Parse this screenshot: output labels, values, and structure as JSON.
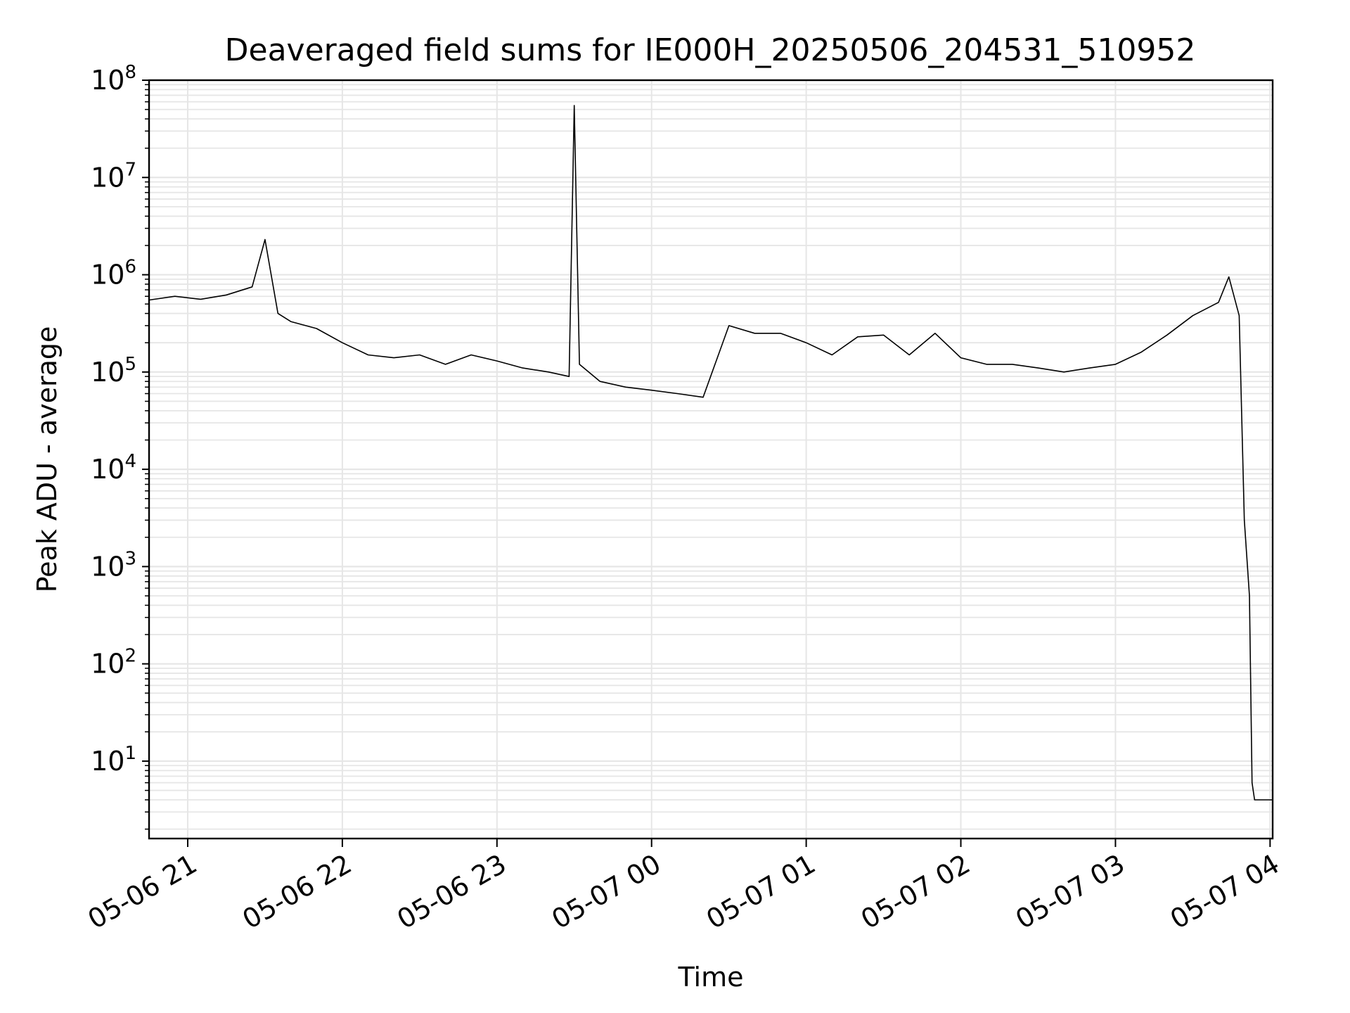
{
  "chart_data": {
    "type": "line",
    "title": "Deaveraged field sums for IE000H_20250506_204531_510952",
    "xlabel": "Time",
    "ylabel": "Peak ADU - average",
    "yscale": "log",
    "grid": true,
    "legend": "none",
    "line_color": "#000000",
    "grid_color": "#e6e6e6",
    "xlim": [
      "2025-05-06 20:45",
      "2025-05-07 04:01"
    ],
    "ylim": [
      1.6,
      100000000
    ],
    "x_ticks": [
      {
        "value": "2025-05-06 21:00",
        "label": "05-06 21"
      },
      {
        "value": "2025-05-06 22:00",
        "label": "05-06 22"
      },
      {
        "value": "2025-05-06 23:00",
        "label": "05-06 23"
      },
      {
        "value": "2025-05-07 00:00",
        "label": "05-07 00"
      },
      {
        "value": "2025-05-07 01:00",
        "label": "05-07 01"
      },
      {
        "value": "2025-05-07 02:00",
        "label": "05-07 02"
      },
      {
        "value": "2025-05-07 03:00",
        "label": "05-07 03"
      },
      {
        "value": "2025-05-07 04:00",
        "label": "05-07 04"
      }
    ],
    "y_ticks": [
      {
        "value": 10,
        "base": "10",
        "exp": "1"
      },
      {
        "value": 100,
        "base": "10",
        "exp": "2"
      },
      {
        "value": 1000,
        "base": "10",
        "exp": "3"
      },
      {
        "value": 10000,
        "base": "10",
        "exp": "4"
      },
      {
        "value": 100000,
        "base": "10",
        "exp": "5"
      },
      {
        "value": 1000000,
        "base": "10",
        "exp": "6"
      },
      {
        "value": 10000000,
        "base": "10",
        "exp": "7"
      },
      {
        "value": 100000000,
        "base": "10",
        "exp": "8"
      }
    ],
    "series": [
      {
        "x": [
          "2025-05-06 20:45",
          "2025-05-06 20:55",
          "2025-05-06 21:05",
          "2025-05-06 21:15",
          "2025-05-06 21:25",
          "2025-05-06 21:30",
          "2025-05-06 21:35",
          "2025-05-06 21:40",
          "2025-05-06 21:50",
          "2025-05-06 22:00",
          "2025-05-06 22:10",
          "2025-05-06 22:20",
          "2025-05-06 22:30",
          "2025-05-06 22:40",
          "2025-05-06 22:50",
          "2025-05-06 23:00",
          "2025-05-06 23:10",
          "2025-05-06 23:20",
          "2025-05-06 23:28",
          "2025-05-06 23:30",
          "2025-05-06 23:32",
          "2025-05-06 23:40",
          "2025-05-06 23:50",
          "2025-05-07 00:00",
          "2025-05-07 00:10",
          "2025-05-07 00:20",
          "2025-05-07 00:30",
          "2025-05-07 00:40",
          "2025-05-07 00:50",
          "2025-05-07 01:00",
          "2025-05-07 01:10",
          "2025-05-07 01:20",
          "2025-05-07 01:30",
          "2025-05-07 01:40",
          "2025-05-07 01:50",
          "2025-05-07 02:00",
          "2025-05-07 02:10",
          "2025-05-07 02:20",
          "2025-05-07 02:30",
          "2025-05-07 02:40",
          "2025-05-07 02:50",
          "2025-05-07 03:00",
          "2025-05-07 03:10",
          "2025-05-07 03:20",
          "2025-05-07 03:30",
          "2025-05-07 03:40",
          "2025-05-07 03:44",
          "2025-05-07 03:48",
          "2025-05-07 03:50",
          "2025-05-07 03:52",
          "2025-05-07 03:53",
          "2025-05-07 03:54",
          "2025-05-07 04:01"
        ],
        "y": [
          550000,
          600000,
          560000,
          620000,
          750000,
          2300000,
          400000,
          330000,
          280000,
          200000,
          150000,
          140000,
          150000,
          120000,
          150000,
          130000,
          110000,
          100000,
          90000,
          55000000,
          120000,
          80000,
          70000,
          65000,
          60000,
          55000,
          300000,
          250000,
          250000,
          200000,
          150000,
          230000,
          240000,
          150000,
          250000,
          140000,
          120000,
          120000,
          110000,
          100000,
          110000,
          120000,
          160000,
          240000,
          380000,
          520000,
          950000,
          380000,
          3000,
          500,
          6,
          4,
          4
        ]
      }
    ]
  }
}
